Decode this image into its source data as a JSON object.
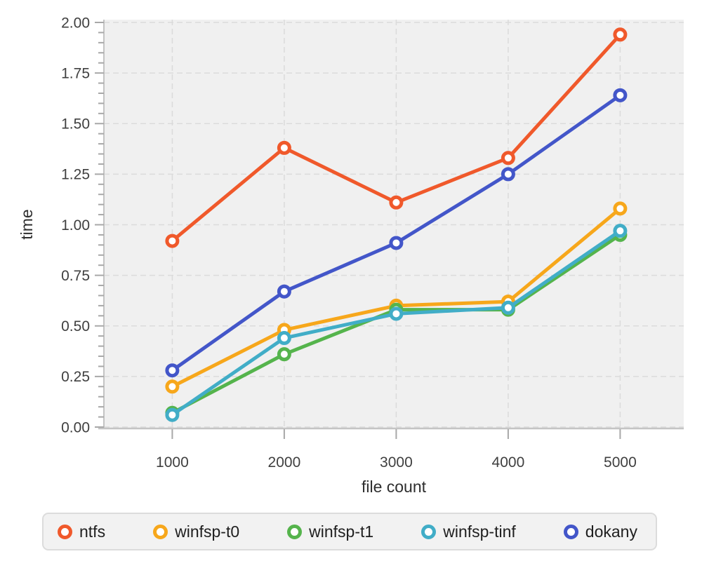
{
  "chart_data": {
    "type": "line",
    "title": "",
    "xlabel": "file count",
    "ylabel": "time",
    "x": [
      1000,
      2000,
      3000,
      4000,
      5000
    ],
    "x_tick_labels": [
      "1000",
      "2000",
      "3000",
      "4000",
      "5000"
    ],
    "y_tick_labels": [
      "0.00",
      "0.25",
      "0.50",
      "0.75",
      "1.00",
      "1.25",
      "1.50",
      "1.75",
      "2.00"
    ],
    "y_tick_values": [
      0,
      0.25,
      0.5,
      0.75,
      1.0,
      1.25,
      1.5,
      1.75,
      2.0
    ],
    "y_minor_step": 0.05,
    "ylim": [
      0,
      2
    ],
    "grid": true,
    "grid_style": "dashed",
    "legend_position": "bottom",
    "marker_style": "open-circle",
    "series": [
      {
        "name": "ntfs",
        "color": "#F0592B",
        "values": [
          0.92,
          1.38,
          1.11,
          1.33,
          1.94
        ]
      },
      {
        "name": "winfsp-t0",
        "color": "#F7A71B",
        "values": [
          0.2,
          0.48,
          0.6,
          0.62,
          1.08
        ]
      },
      {
        "name": "winfsp-t1",
        "color": "#55B44C",
        "values": [
          0.07,
          0.36,
          0.58,
          0.58,
          0.95
        ]
      },
      {
        "name": "winfsp-tinf",
        "color": "#41ADC7",
        "values": [
          0.06,
          0.44,
          0.56,
          0.59,
          0.97
        ]
      },
      {
        "name": "dokany",
        "color": "#4356C9",
        "values": [
          0.28,
          0.67,
          0.91,
          1.25,
          1.64
        ]
      }
    ],
    "colors": {
      "plot_background": "#F0F0F0",
      "grid": "#DBDBDB",
      "spine": "#C4C4C4",
      "tick": "#A8A8A8",
      "tick_label": "#3F3F3F",
      "axis_label": "#2E2E2E",
      "legend_background": "#F2F2F2",
      "legend_border": "#DCDCDC",
      "legend_text": "#1F1F1F"
    }
  }
}
